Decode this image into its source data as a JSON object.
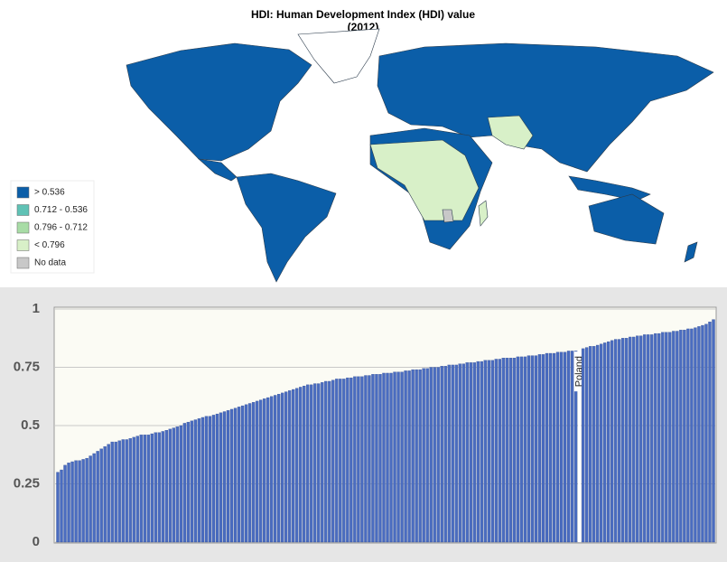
{
  "chart_data": [
    {
      "type": "map",
      "title": "HDI: Human Development Index (HDI) value",
      "subtitle": "(2012)",
      "legend": [
        {
          "label": "> 0.536",
          "color": "#0b5ea8"
        },
        {
          "label": "0.712 - 0.536",
          "color": "#5fc2b5"
        },
        {
          "label": "0.796 - 0.712",
          "color": "#a8dca6"
        },
        {
          "label": "< 0.796",
          "color": "#d8f0c8"
        },
        {
          "label": "No data",
          "color": "#c8c8c8"
        }
      ]
    },
    {
      "type": "bar",
      "color": "#4a6cc0",
      "highlight_color": "#ffffff",
      "ylim": [
        0,
        1
      ],
      "yticks": [
        0,
        0.25,
        0.5,
        0.75,
        1
      ],
      "grid": true,
      "categories": [
        null,
        null,
        null,
        null,
        null,
        null,
        null,
        null,
        null,
        null,
        null,
        null,
        null,
        null,
        null,
        null,
        null,
        null,
        null,
        null,
        null,
        null,
        null,
        null,
        null,
        null,
        null,
        null,
        null,
        null,
        null,
        null,
        null,
        null,
        null,
        null,
        null,
        null,
        null,
        null,
        null,
        null,
        null,
        null,
        null,
        null,
        null,
        null,
        null,
        null,
        null,
        null,
        null,
        null,
        null,
        null,
        null,
        null,
        null,
        null,
        null,
        null,
        null,
        null,
        null,
        null,
        null,
        null,
        null,
        null,
        null,
        null,
        null,
        null,
        null,
        null,
        null,
        null,
        null,
        null,
        null,
        null,
        null,
        null,
        null,
        null,
        null,
        null,
        null,
        null,
        null,
        null,
        null,
        null,
        null,
        null,
        null,
        null,
        null,
        null,
        null,
        null,
        null,
        null,
        null,
        null,
        null,
        null,
        null,
        null,
        null,
        null,
        null,
        null,
        null,
        null,
        null,
        null,
        null,
        null,
        null,
        null,
        null,
        null,
        null,
        null,
        null,
        null,
        null,
        null,
        null,
        null,
        null,
        null,
        null,
        null,
        null,
        null,
        null,
        null,
        null,
        null,
        null,
        null,
        "Poland",
        null,
        null,
        null,
        null,
        null,
        null,
        null,
        null,
        null,
        null,
        null,
        null,
        null,
        null,
        null,
        null,
        null,
        null,
        null,
        null,
        null,
        null,
        null,
        null,
        null,
        null,
        null,
        null,
        null,
        null,
        null,
        null,
        null,
        null,
        null,
        null,
        null
      ],
      "values": [
        0.3,
        0.31,
        0.33,
        0.34,
        0.345,
        0.35,
        0.35,
        0.355,
        0.36,
        0.37,
        0.38,
        0.39,
        0.4,
        0.41,
        0.42,
        0.43,
        0.43,
        0.435,
        0.44,
        0.44,
        0.445,
        0.45,
        0.455,
        0.46,
        0.46,
        0.46,
        0.465,
        0.47,
        0.47,
        0.475,
        0.48,
        0.485,
        0.49,
        0.495,
        0.5,
        0.51,
        0.515,
        0.52,
        0.525,
        0.53,
        0.535,
        0.54,
        0.54,
        0.545,
        0.55,
        0.555,
        0.56,
        0.565,
        0.57,
        0.575,
        0.58,
        0.585,
        0.59,
        0.595,
        0.6,
        0.605,
        0.61,
        0.615,
        0.62,
        0.625,
        0.63,
        0.635,
        0.64,
        0.645,
        0.65,
        0.655,
        0.66,
        0.665,
        0.67,
        0.675,
        0.675,
        0.68,
        0.68,
        0.685,
        0.69,
        0.69,
        0.695,
        0.7,
        0.7,
        0.7,
        0.705,
        0.705,
        0.71,
        0.71,
        0.71,
        0.715,
        0.715,
        0.72,
        0.72,
        0.72,
        0.725,
        0.725,
        0.725,
        0.73,
        0.73,
        0.73,
        0.735,
        0.735,
        0.74,
        0.74,
        0.74,
        0.745,
        0.745,
        0.75,
        0.75,
        0.75,
        0.755,
        0.755,
        0.76,
        0.76,
        0.76,
        0.765,
        0.765,
        0.77,
        0.77,
        0.77,
        0.775,
        0.775,
        0.78,
        0.78,
        0.78,
        0.785,
        0.785,
        0.79,
        0.79,
        0.79,
        0.79,
        0.795,
        0.795,
        0.795,
        0.8,
        0.8,
        0.8,
        0.805,
        0.805,
        0.81,
        0.81,
        0.81,
        0.815,
        0.815,
        0.815,
        0.82,
        0.82,
        0.82,
        0.825,
        0.83,
        0.835,
        0.84,
        0.84,
        0.845,
        0.85,
        0.855,
        0.86,
        0.865,
        0.87,
        0.87,
        0.875,
        0.875,
        0.88,
        0.88,
        0.885,
        0.885,
        0.89,
        0.89,
        0.89,
        0.895,
        0.895,
        0.9,
        0.9,
        0.9,
        0.905,
        0.905,
        0.91,
        0.91,
        0.915,
        0.915,
        0.92,
        0.925,
        0.93,
        0.935,
        0.945,
        0.955
      ]
    }
  ]
}
